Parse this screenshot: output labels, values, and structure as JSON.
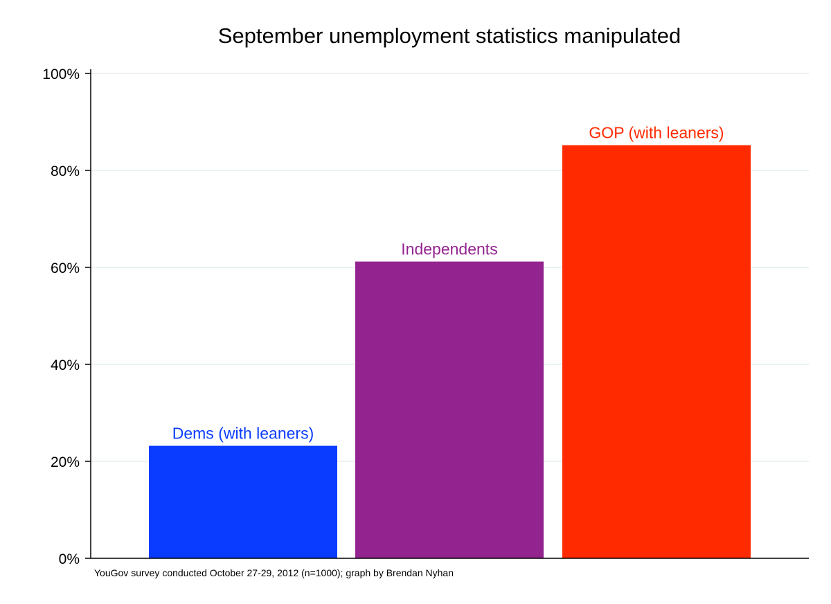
{
  "chart_data": {
    "type": "bar",
    "title": "September unemployment statistics manipulated",
    "categories": [
      "Dems (with leaners)",
      "Independents",
      "GOP (with leaners)"
    ],
    "values": [
      23.2,
      61.2,
      85.2
    ],
    "colors": [
      "#0a3cff",
      "#93238f",
      "#ff2a00"
    ],
    "ylim": [
      0,
      100
    ],
    "yticks": [
      0,
      20,
      40,
      60,
      80,
      100
    ],
    "ytick_labels": [
      "0%",
      "20%",
      "40%",
      "60%",
      "80%",
      "100%"
    ],
    "grid": true,
    "grid_color": "#e6eef0",
    "xlabel": "",
    "ylabel": "",
    "note": "YouGov survey conducted October 27-29, 2012 (n=1000); graph by Brendan Nyhan"
  }
}
